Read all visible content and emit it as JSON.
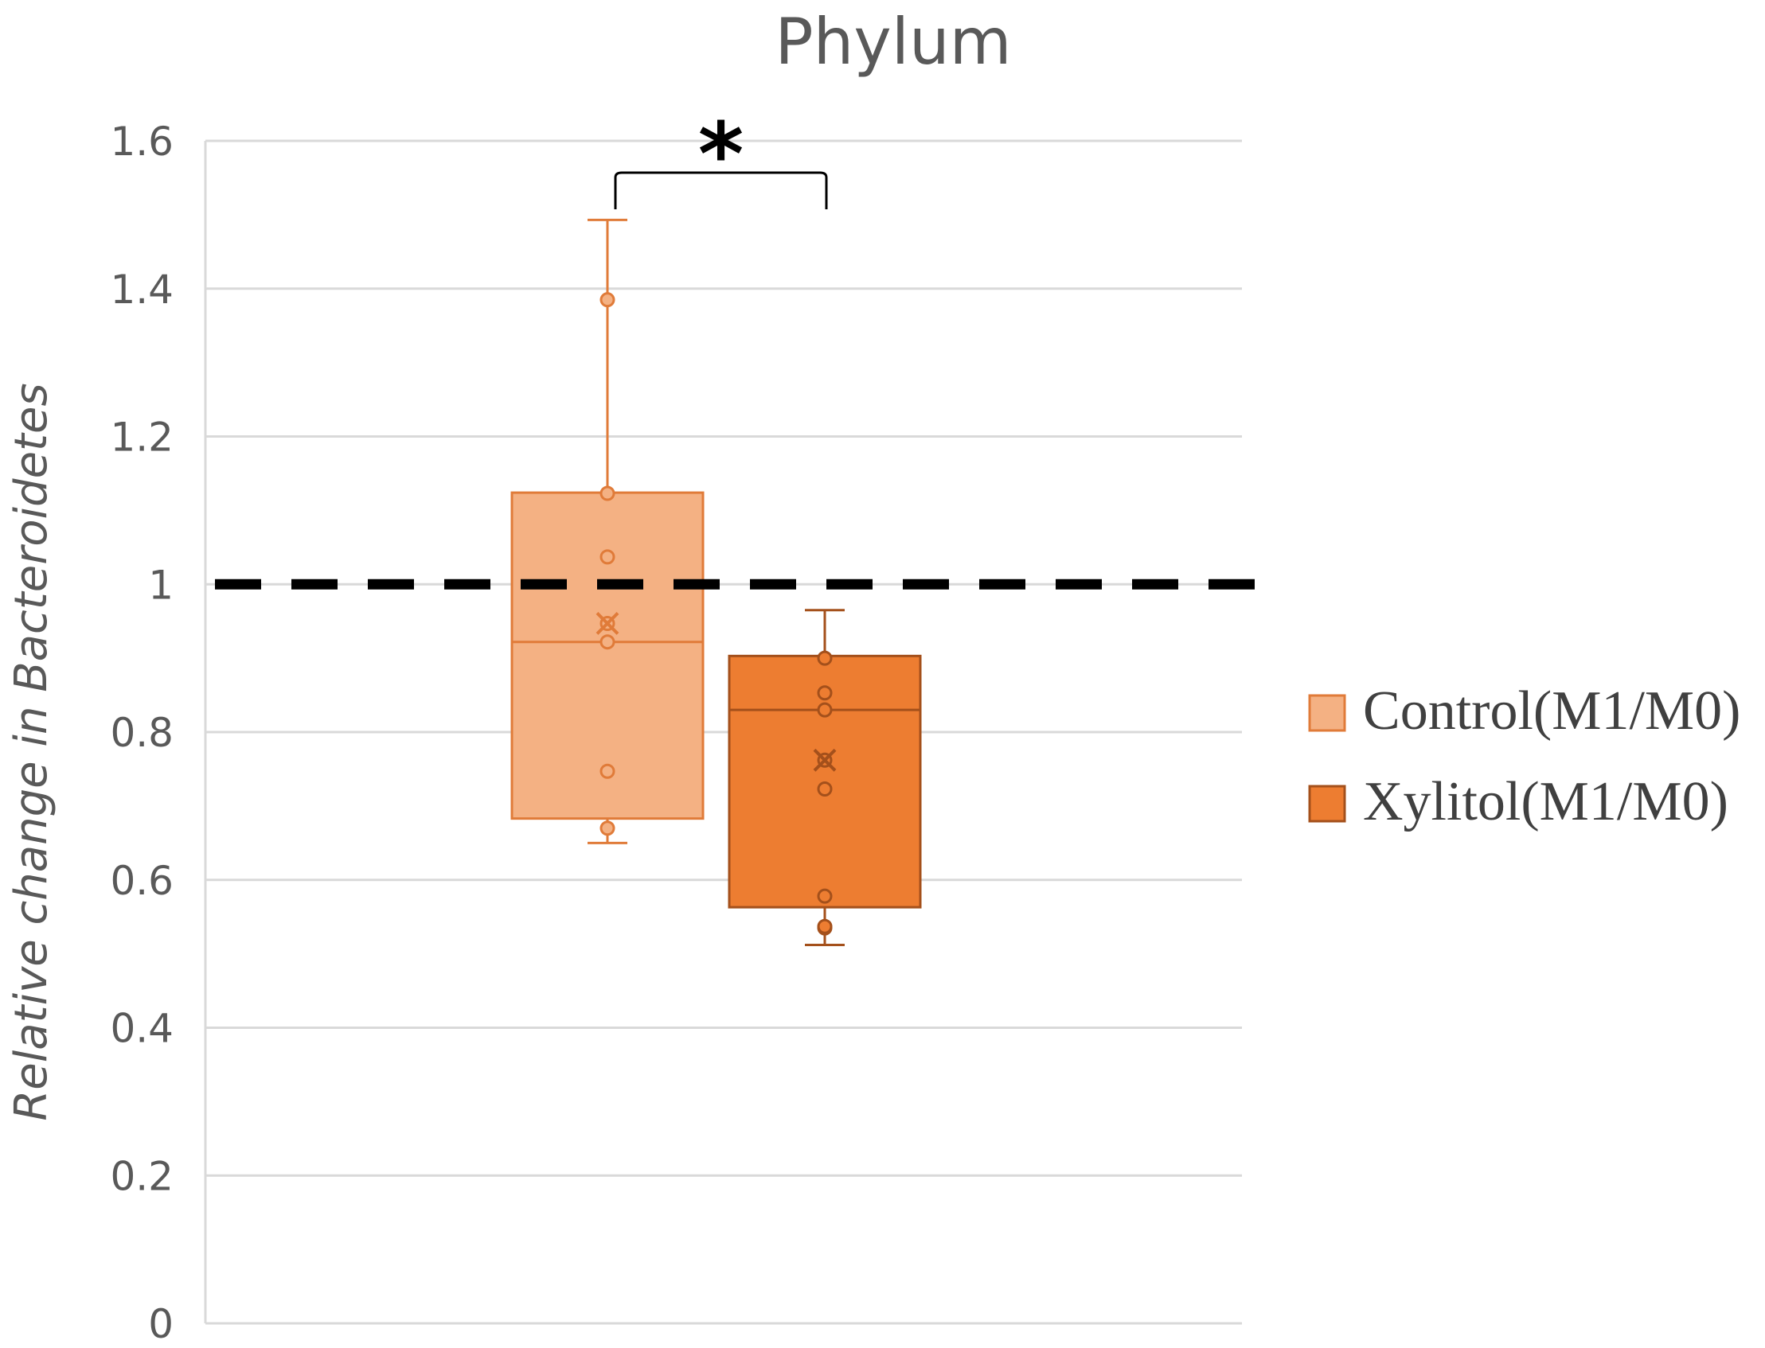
{
  "chart_data": {
    "type": "box",
    "title": "Phylum",
    "ylabel": "Relative change in Bacteroidetes",
    "xlabel": "",
    "ylim": [
      0,
      1.6
    ],
    "yticks": [
      {
        "value": 0,
        "label": "0"
      },
      {
        "value": 0.2,
        "label": "0.2"
      },
      {
        "value": 0.4,
        "label": "0.4"
      },
      {
        "value": 0.6,
        "label": "0.6"
      },
      {
        "value": 0.8,
        "label": "0.8"
      },
      {
        "value": 1,
        "label": "1"
      },
      {
        "value": 1.2,
        "label": "1.2"
      },
      {
        "value": 1.4,
        "label": "1.4"
      },
      {
        "value": 1.6,
        "label": "1.6"
      }
    ],
    "grid": true,
    "reference_line": {
      "value": 1.0,
      "style": "dashed",
      "color": "#000000"
    },
    "legend_position": "right",
    "series": [
      {
        "name": "Control(M1/M0)",
        "fill": "#F4B183",
        "stroke": "#E07B39",
        "whisker_low": 0.65,
        "q1": 0.683,
        "median": 0.922,
        "q3": 1.124,
        "whisker_high": 1.493,
        "mean": 0.947,
        "points": [
          0.67,
          0.747,
          0.922,
          0.947,
          1.037,
          1.123,
          1.385
        ]
      },
      {
        "name": "Xylitol(M1/M0)",
        "fill": "#ED7D31",
        "stroke": "#A4501B",
        "whisker_low": 0.512,
        "q1": 0.563,
        "median": 0.83,
        "q3": 0.903,
        "whisker_high": 0.965,
        "mean": 0.762,
        "points": [
          0.535,
          0.537,
          0.578,
          0.723,
          0.762,
          0.83,
          0.853,
          0.9
        ]
      }
    ],
    "significance": {
      "label": "*",
      "between": [
        "Control(M1/M0)",
        "Xylitol(M1/M0)"
      ]
    }
  }
}
